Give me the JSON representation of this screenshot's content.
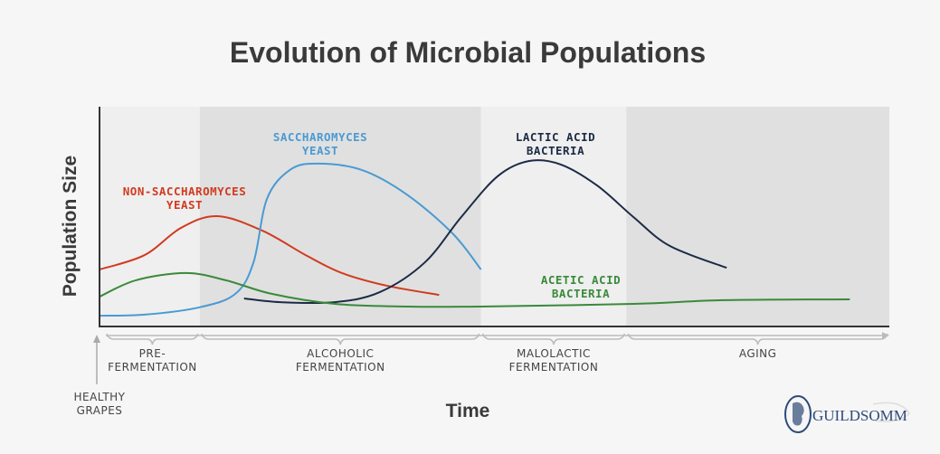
{
  "chart_data": {
    "type": "line",
    "title": "Evolution of Microbial Populations",
    "xlabel": "Time",
    "ylabel": "Population Size",
    "xlim": [
      0,
      100
    ],
    "ylim": [
      0,
      100
    ],
    "phases": [
      {
        "label": [
          "PRE-",
          "FERMENTATION"
        ],
        "start": 0,
        "end": 12.7,
        "shade": "light"
      },
      {
        "label": [
          "ALCOHOLIC",
          "FERMENTATION"
        ],
        "start": 12.7,
        "end": 48.3,
        "shade": "dark"
      },
      {
        "label": [
          "MALOLACTIC",
          "FERMENTATION"
        ],
        "start": 48.3,
        "end": 66.7,
        "shade": "light"
      },
      {
        "label": [
          "AGING"
        ],
        "start": 66.7,
        "end": 100,
        "shade": "dark"
      }
    ],
    "start_marker": [
      "HEALTHY",
      "GRAPES"
    ],
    "series": [
      {
        "name": [
          "NON-SACCHAROMYCES",
          "YEAST"
        ],
        "color": "#d13b1f",
        "points": [
          [
            0,
            25.6
          ],
          [
            5.7,
            32.2
          ],
          [
            10.3,
            44.6
          ],
          [
            14.9,
            50
          ],
          [
            20.6,
            43.4
          ],
          [
            26.3,
            31.8
          ],
          [
            30.7,
            24
          ],
          [
            36.4,
            18.2
          ],
          [
            43,
            14
          ]
        ]
      },
      {
        "name": [
          "SACCHAROMYCES",
          "YEAST"
        ],
        "color": "#4a9ad2",
        "points": [
          [
            0,
            4.5
          ],
          [
            5.7,
            5
          ],
          [
            12.6,
            8.3
          ],
          [
            17.2,
            14.5
          ],
          [
            19.5,
            28.9
          ],
          [
            21.2,
            57.9
          ],
          [
            24.1,
            71.1
          ],
          [
            27.5,
            74
          ],
          [
            33.2,
            71.1
          ],
          [
            38.9,
            59.9
          ],
          [
            44.7,
            42.1
          ],
          [
            48.3,
            25.6
          ]
        ]
      },
      {
        "name": [
          "LACTIC ACID",
          "BACTERIA"
        ],
        "color": "#1c2b45",
        "points": [
          [
            18.3,
            12.4
          ],
          [
            22.9,
            10.7
          ],
          [
            29.8,
            10.7
          ],
          [
            35.5,
            15.3
          ],
          [
            41.2,
            28.9
          ],
          [
            45.8,
            49.6
          ],
          [
            50.4,
            68.2
          ],
          [
            54.4,
            75.2
          ],
          [
            58.4,
            73.6
          ],
          [
            63,
            64
          ],
          [
            67.6,
            49.6
          ],
          [
            72.2,
            36.4
          ],
          [
            79.4,
            26.4
          ]
        ]
      },
      {
        "name": [
          "ACETIC ACID",
          "BACTERIA"
        ],
        "color": "#3a8a3a",
        "points": [
          [
            0,
            13.2
          ],
          [
            4.6,
            20.7
          ],
          [
            10.9,
            24
          ],
          [
            16,
            20.7
          ],
          [
            21.8,
            14.5
          ],
          [
            29.8,
            9.9
          ],
          [
            39,
            8.7
          ],
          [
            48.1,
            8.7
          ],
          [
            67.6,
            9.9
          ],
          [
            79,
            11.6
          ],
          [
            95,
            12
          ]
        ]
      }
    ]
  },
  "logo": {
    "text": "GUILDSOMM"
  }
}
